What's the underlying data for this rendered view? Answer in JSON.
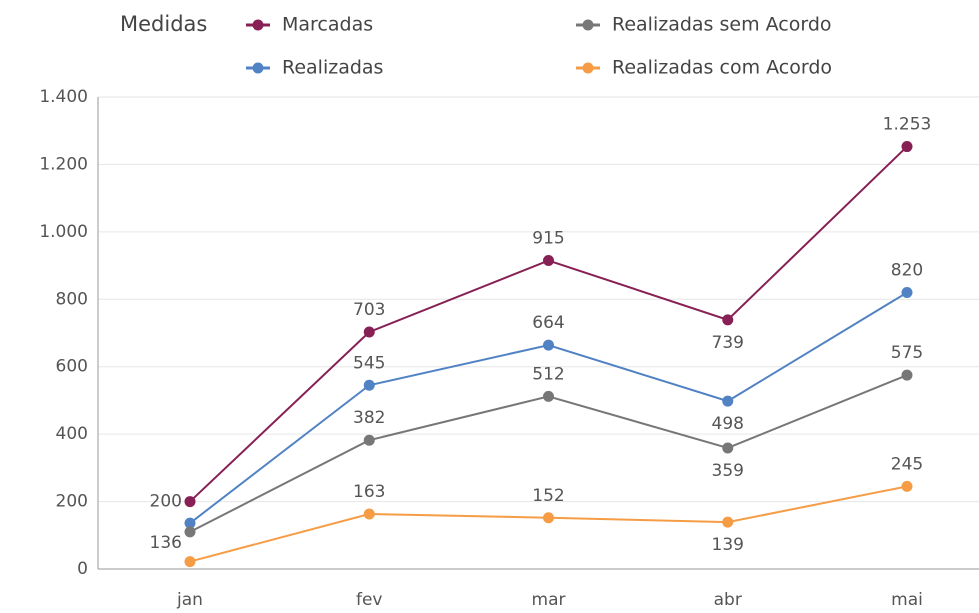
{
  "chart_data": {
    "type": "line",
    "legend_title": "Medidas",
    "categories": [
      "jan",
      "fev",
      "mar",
      "abr",
      "mai"
    ],
    "series": [
      {
        "name": "Marcadas",
        "color": "#862055",
        "values": [
          200,
          703,
          915,
          739,
          1253
        ],
        "value_labels": [
          "200",
          "703",
          "915",
          "739",
          "1.253"
        ]
      },
      {
        "name": "Realizadas",
        "color": "#5182c4",
        "values": [
          136,
          545,
          664,
          498,
          820
        ],
        "value_labels": [
          "136",
          "545",
          "664",
          "498",
          "820"
        ]
      },
      {
        "name": "Realizadas sem Acordo",
        "color": "#777777",
        "values": [
          110,
          382,
          512,
          359,
          575
        ],
        "value_labels": [
          null,
          "382",
          "512",
          "359",
          "575"
        ]
      },
      {
        "name": "Realizadas com Acordo",
        "color": "#f59c45",
        "values": [
          22,
          163,
          152,
          139,
          245
        ],
        "value_labels": [
          null,
          "163",
          "152",
          "139",
          "245"
        ]
      }
    ],
    "ylim": [
      0,
      1400
    ],
    "yticks": [
      0,
      200,
      400,
      600,
      800,
      {
        "value": 1000,
        "label": "1.000"
      },
      {
        "value": 1200,
        "label": "1.200"
      },
      {
        "value": 1400,
        "label": "1.400"
      }
    ],
    "grid": true
  }
}
